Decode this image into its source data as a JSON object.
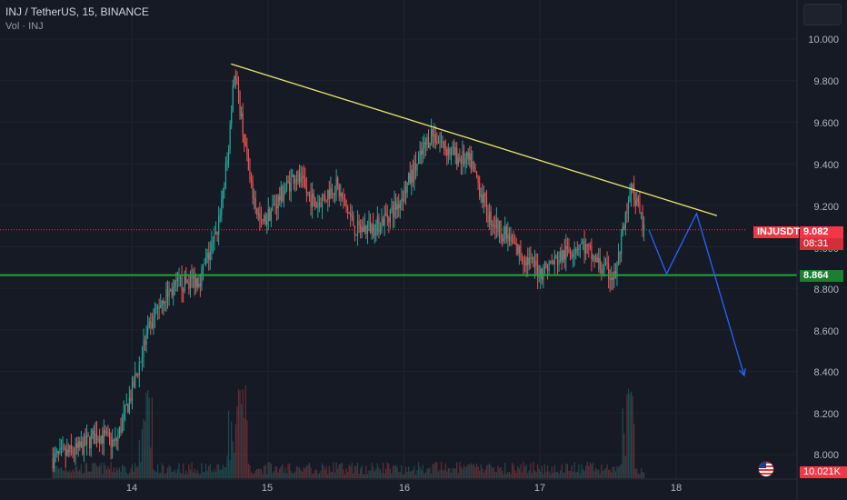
{
  "header": {
    "title": "INJ / TetherUS, 15, BINANCE",
    "volume_label": "Vol · INJ"
  },
  "price_axis": {
    "ticks": [
      "10.000",
      "9.800",
      "9.600",
      "9.400",
      "9.200",
      "9.000",
      "8.800",
      "8.600",
      "8.400",
      "8.200",
      "8.000"
    ]
  },
  "time_axis": {
    "ticks": [
      "14",
      "15",
      "16",
      "17",
      "18"
    ]
  },
  "labels": {
    "symbol": "INJUSDT",
    "last_price": "9.082",
    "countdown": "08:31",
    "support_level": "8.864",
    "last_volume": "10.021K"
  },
  "colors": {
    "background": "#161a25",
    "up": "#26a69a",
    "down": "#ef5350",
    "trendline": "#e8e86a",
    "support": "#22a33a",
    "projection": "#2962ff",
    "price_line": "#f23645"
  },
  "chart_data": {
    "type": "candlestick",
    "symbol": "INJUSDT",
    "interval": "15",
    "exchange": "BINANCE",
    "y_range": [
      7.9,
      10.1
    ],
    "x_range_days": [
      13.4,
      18.55
    ],
    "last_price": 9.082,
    "support": 8.864,
    "trendline": [
      {
        "day": 14.73,
        "price": 9.88
      },
      {
        "day": 18.3,
        "price": 9.15
      }
    ],
    "projection_path": [
      {
        "day": 17.8,
        "price": 9.08
      },
      {
        "day": 17.93,
        "price": 8.87
      },
      {
        "day": 18.15,
        "price": 9.16
      },
      {
        "day": 18.5,
        "price": 8.38
      }
    ],
    "price_path": [
      {
        "day": 13.42,
        "price": 7.98
      },
      {
        "day": 13.6,
        "price": 8.02
      },
      {
        "day": 13.75,
        "price": 8.1
      },
      {
        "day": 13.88,
        "price": 8.05
      },
      {
        "day": 14.0,
        "price": 8.3
      },
      {
        "day": 14.1,
        "price": 8.55
      },
      {
        "day": 14.22,
        "price": 8.75
      },
      {
        "day": 14.35,
        "price": 8.82
      },
      {
        "day": 14.5,
        "price": 8.85
      },
      {
        "day": 14.62,
        "price": 9.05
      },
      {
        "day": 14.7,
        "price": 9.4
      },
      {
        "day": 14.75,
        "price": 9.85
      },
      {
        "day": 14.8,
        "price": 9.65
      },
      {
        "day": 14.87,
        "price": 9.3
      },
      {
        "day": 14.95,
        "price": 9.1
      },
      {
        "day": 15.05,
        "price": 9.2
      },
      {
        "day": 15.2,
        "price": 9.35
      },
      {
        "day": 15.35,
        "price": 9.2
      },
      {
        "day": 15.5,
        "price": 9.3
      },
      {
        "day": 15.65,
        "price": 9.08
      },
      {
        "day": 15.8,
        "price": 9.1
      },
      {
        "day": 15.95,
        "price": 9.2
      },
      {
        "day": 16.1,
        "price": 9.4
      },
      {
        "day": 16.2,
        "price": 9.55
      },
      {
        "day": 16.35,
        "price": 9.45
      },
      {
        "day": 16.5,
        "price": 9.4
      },
      {
        "day": 16.62,
        "price": 9.15
      },
      {
        "day": 16.75,
        "price": 9.05
      },
      {
        "day": 16.88,
        "price": 8.95
      },
      {
        "day": 17.0,
        "price": 8.88
      },
      {
        "day": 17.15,
        "price": 8.95
      },
      {
        "day": 17.3,
        "price": 9.02
      },
      {
        "day": 17.45,
        "price": 8.9
      },
      {
        "day": 17.55,
        "price": 8.85
      },
      {
        "day": 17.67,
        "price": 9.28
      },
      {
        "day": 17.77,
        "price": 9.08
      }
    ]
  }
}
